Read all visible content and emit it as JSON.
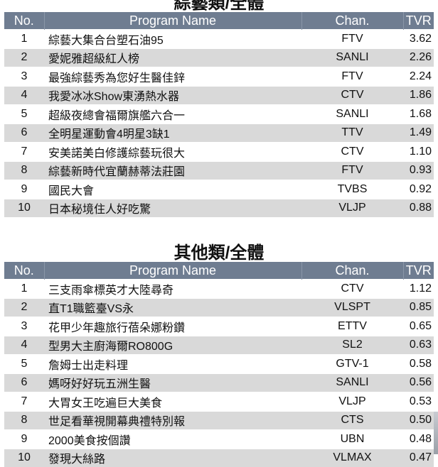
{
  "columns": {
    "no": "No.",
    "name": "Program Name",
    "chan": "Chan.",
    "tvr": "TVR"
  },
  "colors": {
    "header": "#6f7d91",
    "stripe": "#d9d9d9"
  },
  "tables": [
    {
      "title": "綜藝類/全體",
      "rows": [
        {
          "no": "1",
          "name": "綜藝大集合台塑石油95",
          "chan": "FTV",
          "tvr": "3.62"
        },
        {
          "no": "2",
          "name": "愛妮雅超級紅人榜",
          "chan": "SANLI",
          "tvr": "2.26"
        },
        {
          "no": "3",
          "name": "最強綜藝秀為您好生醫佳鋅",
          "chan": "FTV",
          "tvr": "2.24"
        },
        {
          "no": "4",
          "name": "我愛冰冰Show東湧熱水器",
          "chan": "CTV",
          "tvr": "1.86"
        },
        {
          "no": "5",
          "name": "超級夜總會福爾旗艦六合一",
          "chan": "SANLI",
          "tvr": "1.68"
        },
        {
          "no": "6",
          "name": "全明星運動會4明星3缺1",
          "chan": "TTV",
          "tvr": "1.49"
        },
        {
          "no": "7",
          "name": "安美諾美白修護綜藝玩很大",
          "chan": "CTV",
          "tvr": "1.10"
        },
        {
          "no": "8",
          "name": "綜藝新時代宜蘭赫蒂法莊園",
          "chan": "FTV",
          "tvr": "0.93"
        },
        {
          "no": "9",
          "name": "國民大會",
          "chan": "TVBS",
          "tvr": "0.92"
        },
        {
          "no": "10",
          "name": "日本秘境住人好吃驚",
          "chan": "VLJP",
          "tvr": "0.88"
        }
      ]
    },
    {
      "title": "其他類/全體",
      "rows": [
        {
          "no": "1",
          "name": "三支雨傘標英才大陸尋奇",
          "chan": "CTV",
          "tvr": "1.12"
        },
        {
          "no": "2",
          "name": "直T1職籃臺VS永",
          "chan": "VLSPT",
          "tvr": "0.85"
        },
        {
          "no": "3",
          "name": "花甲少年趣旅行蓓朵娜粉鑽",
          "chan": "ETTV",
          "tvr": "0.65"
        },
        {
          "no": "4",
          "name": "型男大主廚海爾RO800G",
          "chan": "SL2",
          "tvr": "0.63"
        },
        {
          "no": "5",
          "name": "詹姆士出走料理",
          "chan": "GTV-1",
          "tvr": "0.58"
        },
        {
          "no": "6",
          "name": "媽呀好好玩五洲生醫",
          "chan": "SANLI",
          "tvr": "0.56"
        },
        {
          "no": "7",
          "name": "大胃女王吃遍巨大美食",
          "chan": "VLJP",
          "tvr": "0.53"
        },
        {
          "no": "8",
          "name": "世足看華視開幕典禮特別報",
          "chan": "CTS",
          "tvr": "0.50"
        },
        {
          "no": "9",
          "name": "2000美食按個讚",
          "chan": "UBN",
          "tvr": "0.48"
        },
        {
          "no": "10",
          "name": "發現大絲路",
          "chan": "VLMAX",
          "tvr": "0.47"
        }
      ]
    }
  ]
}
